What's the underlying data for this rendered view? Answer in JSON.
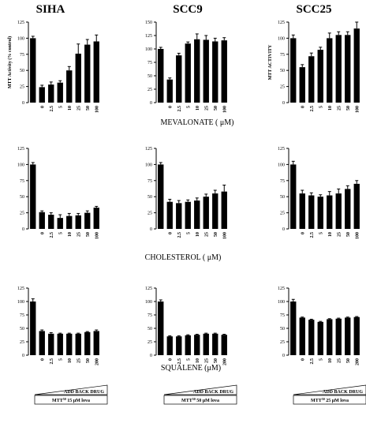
{
  "column_titles": [
    "SIHA",
    "SCC9",
    "SCC25"
  ],
  "row_labels": [
    "MEVALONATE ( μM)",
    "CHOLESTEROL ( μM)",
    "SQUALENE (μM)"
  ],
  "add_back_label": "ADD BACK DRUG",
  "mtt_superscript": "50",
  "treatment_labels": [
    "15 μM lova",
    "50 μM lova",
    "25 μM lova"
  ],
  "chart_data": [
    {
      "type": "bar",
      "panel": "SIHA / mevalonate",
      "ylabel": "MTT Activity (% control)",
      "ylim": [
        0,
        125
      ],
      "yticks": [
        0,
        25,
        50,
        75,
        100,
        125
      ],
      "categories": [
        "",
        "0",
        "2.5",
        "5",
        "10",
        "25",
        "50",
        "100"
      ],
      "values": [
        100,
        24,
        28,
        31,
        50,
        76,
        90,
        95
      ],
      "errors": [
        3,
        3,
        4,
        3,
        6,
        15,
        8,
        10
      ]
    },
    {
      "type": "bar",
      "panel": "SCC9 / mevalonate",
      "ylabel": "",
      "ylim": [
        0,
        150
      ],
      "yticks": [
        0,
        25,
        50,
        75,
        100,
        125,
        150
      ],
      "categories": [
        "",
        "0",
        "2.5",
        "5",
        "10",
        "25",
        "50",
        "100"
      ],
      "values": [
        100,
        43,
        88,
        110,
        118,
        117,
        114,
        116
      ],
      "errors": [
        3,
        3,
        4,
        3,
        10,
        8,
        6,
        5
      ]
    },
    {
      "type": "bar",
      "panel": "SCC25 / mevalonate",
      "ylabel": "MTT ACTIVITY",
      "ylim": [
        0,
        125
      ],
      "yticks": [
        0,
        25,
        50,
        75,
        100,
        125
      ],
      "categories": [
        "",
        "0",
        "2.5",
        "5",
        "10",
        "25",
        "50",
        "100"
      ],
      "values": [
        100,
        55,
        72,
        82,
        100,
        105,
        105,
        115
      ],
      "errors": [
        5,
        4,
        5,
        4,
        8,
        5,
        5,
        10
      ]
    },
    {
      "type": "bar",
      "panel": "SIHA / cholesterol",
      "ylabel": "",
      "ylim": [
        0,
        125
      ],
      "yticks": [
        0,
        25,
        50,
        75,
        100,
        125
      ],
      "categories": [
        "",
        "0",
        "2.5",
        "5",
        "10",
        "25",
        "50",
        "100"
      ],
      "values": [
        100,
        26,
        22,
        17,
        20,
        21,
        25,
        33
      ],
      "errors": [
        3,
        2,
        3,
        5,
        4,
        3,
        3,
        2
      ]
    },
    {
      "type": "bar",
      "panel": "SCC9 / cholesterol",
      "ylabel": "",
      "ylim": [
        0,
        125
      ],
      "yticks": [
        0,
        25,
        50,
        75,
        100,
        125
      ],
      "categories": [
        "",
        "0",
        "2.5",
        "5",
        "10",
        "25",
        "50",
        "100"
      ],
      "values": [
        100,
        42,
        40,
        42,
        44,
        50,
        55,
        58
      ],
      "errors": [
        3,
        4,
        4,
        3,
        4,
        4,
        5,
        10
      ]
    },
    {
      "type": "bar",
      "panel": "SCC25 / cholesterol",
      "ylabel": "",
      "ylim": [
        0,
        125
      ],
      "yticks": [
        0,
        25,
        50,
        75,
        100,
        125
      ],
      "categories": [
        "",
        "0",
        "2.5",
        "5",
        "10",
        "25",
        "50",
        "100"
      ],
      "values": [
        100,
        55,
        52,
        50,
        52,
        55,
        62,
        70
      ],
      "errors": [
        5,
        5,
        4,
        3,
        6,
        7,
        5,
        5
      ]
    },
    {
      "type": "bar",
      "panel": "SIHA / squalene",
      "ylabel": "",
      "ylim": [
        0,
        125
      ],
      "yticks": [
        0,
        25,
        50,
        75,
        100,
        125
      ],
      "categories": [
        "",
        "0",
        "2.5",
        "5",
        "10",
        "25",
        "50",
        "200"
      ],
      "values": [
        100,
        45,
        40,
        40,
        40,
        40,
        43,
        45
      ],
      "errors": [
        5,
        2,
        2,
        1,
        1,
        1,
        1,
        2
      ]
    },
    {
      "type": "bar",
      "panel": "SCC9 / squalene",
      "ylabel": "",
      "ylim": [
        0,
        125
      ],
      "yticks": [
        0,
        25,
        50,
        75,
        100,
        125
      ],
      "categories": [
        "",
        "0",
        "2.5",
        "5",
        "10",
        "25",
        "50",
        "200"
      ],
      "values": [
        100,
        35,
        35,
        37,
        38,
        40,
        40,
        38
      ],
      "errors": [
        3,
        1,
        1,
        1,
        1,
        1,
        1,
        1
      ]
    },
    {
      "type": "bar",
      "panel": "SCC25 / squalene",
      "ylabel": "",
      "ylim": [
        0,
        125
      ],
      "yticks": [
        0,
        25,
        50,
        75,
        100,
        125
      ],
      "categories": [
        "",
        "0",
        "2.5",
        "5",
        "10",
        "25",
        "50",
        "200"
      ],
      "values": [
        100,
        70,
        66,
        62,
        67,
        68,
        70,
        71
      ],
      "errors": [
        4,
        1,
        1,
        1,
        1,
        1,
        1,
        1
      ]
    }
  ]
}
